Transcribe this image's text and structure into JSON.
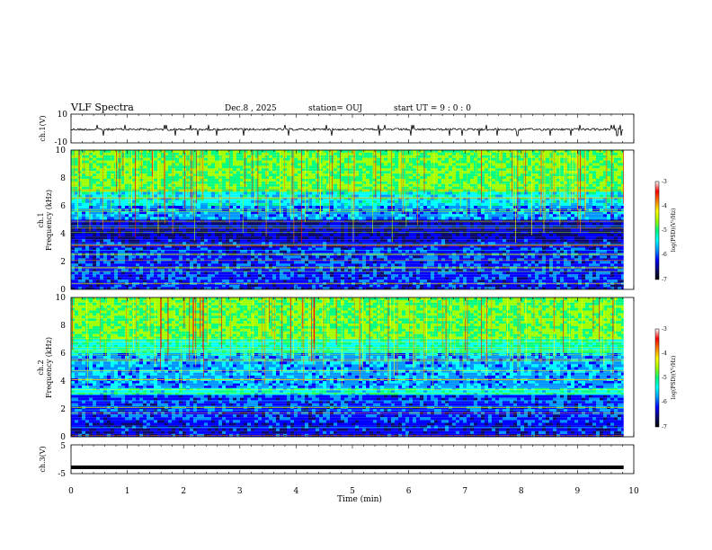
{
  "header": {
    "title": "VLF Spectra",
    "date": "Dec.8  , 2025",
    "station": "station= OUJ",
    "start": "start  UT  =   9 : 0  : 0"
  },
  "colors": {
    "cmap": [
      "#000000",
      "#0a0a6e",
      "#0000ff",
      "#0096ff",
      "#00ffff",
      "#00ff80",
      "#a0ff00",
      "#ffff00",
      "#ff8000",
      "#ff0000",
      "#ffffff"
    ]
  },
  "chart_data": [
    {
      "type": "line",
      "name": "ch1-waveform",
      "ylabel": "ch.1(V)",
      "ylim": [
        -10,
        10
      ],
      "ytick_labels": [
        "10",
        "-10"
      ],
      "baseline": 0.0
    },
    {
      "type": "heatmap",
      "name": "ch1-spectrogram",
      "ylabel_line1": "ch.1",
      "ylabel_line2": "Frequency  (kHz)",
      "ylim": [
        0,
        10
      ],
      "ytick_labels": [
        "0",
        "2",
        "4",
        "6",
        "8",
        "10"
      ],
      "bands": [
        {
          "from": 0.0,
          "to": 0.5,
          "level": 2.0
        },
        {
          "from": 0.5,
          "to": 3.0,
          "level": 2.2
        },
        {
          "from": 3.0,
          "to": 3.6,
          "level": 1.8
        },
        {
          "from": 3.6,
          "to": 5.0,
          "level": 1.4
        },
        {
          "from": 5.0,
          "to": 6.0,
          "level": 3.0
        },
        {
          "from": 6.0,
          "to": 7.0,
          "level": 4.0
        },
        {
          "from": 7.0,
          "to": 10.0,
          "level": 5.5
        }
      ],
      "colorbar": {
        "label": "log(PSD)(V²/Hz)",
        "range": [
          -7,
          -3
        ],
        "tick_labels": [
          "-3",
          "-4",
          "-5",
          "-6",
          "-7"
        ]
      }
    },
    {
      "type": "heatmap",
      "name": "ch2-spectrogram",
      "ylabel_line1": "ch.2",
      "ylabel_line2": "Frequency  (kHz)",
      "ylim": [
        0,
        10
      ],
      "ytick_labels": [
        "0",
        "2",
        "4",
        "6",
        "8",
        "10"
      ],
      "bands": [
        {
          "from": 0.0,
          "to": 1.0,
          "level": 1.8
        },
        {
          "from": 1.0,
          "to": 3.0,
          "level": 2.2
        },
        {
          "from": 3.0,
          "to": 3.5,
          "level": 4.2
        },
        {
          "from": 3.5,
          "to": 4.0,
          "level": 3.0
        },
        {
          "from": 4.0,
          "to": 6.0,
          "level": 3.2
        },
        {
          "from": 6.0,
          "to": 7.0,
          "level": 4.4
        },
        {
          "from": 7.0,
          "to": 10.0,
          "level": 5.6
        }
      ],
      "colorbar": {
        "label": "log(PSD)(V²/Hz)",
        "range": [
          -7,
          -3
        ],
        "tick_labels": [
          "-3",
          "-4",
          "-5",
          "-6",
          "-7"
        ]
      }
    },
    {
      "type": "line",
      "name": "ch3-waveform",
      "ylabel": "ch.3(V)",
      "ylim": [
        -5,
        5
      ],
      "ytick_labels": [
        "5",
        "-5"
      ],
      "baseline": -2.8
    }
  ],
  "xaxis": {
    "label": "Time  (min)",
    "range": [
      0,
      10
    ],
    "data_end": 9.82,
    "tick_labels": [
      "0",
      "1",
      "2",
      "3",
      "4",
      "5",
      "6",
      "7",
      "8",
      "9",
      "10"
    ]
  }
}
